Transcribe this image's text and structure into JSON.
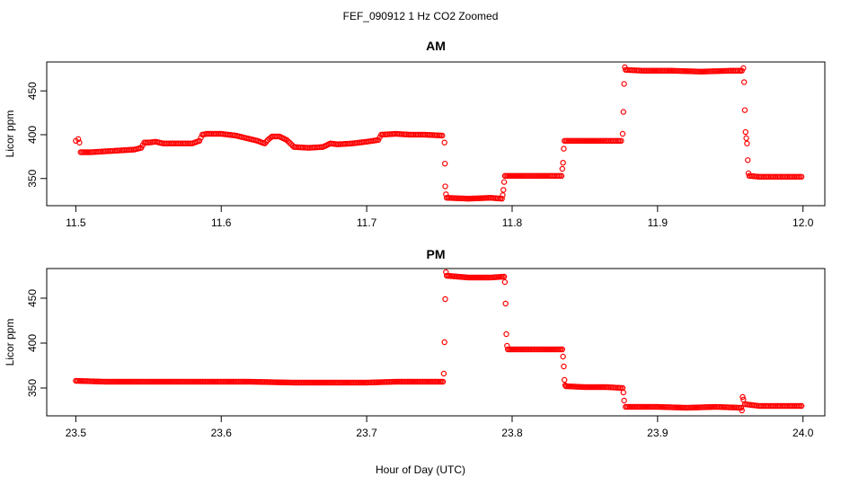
{
  "suptitle": "FEF_090912  1 Hz CO2 Zoomed",
  "xlabel": "Hour of Day (UTC)",
  "marker_color": "#ff0000",
  "chart_data": [
    {
      "type": "scatter",
      "title": "AM",
      "ylabel": "Licor ppm",
      "xlim": [
        11.48,
        12.015
      ],
      "ylim": [
        319,
        483
      ],
      "x_ticks": [
        "11.5",
        "11.6",
        "11.7",
        "11.8",
        "11.9",
        "12.0"
      ],
      "y_ticks": [
        "350",
        "400",
        "450"
      ],
      "series": [
        {
          "marker": "open-circle",
          "points": [
            [
              11.5,
              393
            ],
            [
              11.5017,
              395
            ],
            [
              11.5025,
              391
            ],
            [
              11.5033,
              380
            ],
            [
              11.51,
              380
            ],
            [
              11.52,
              381
            ],
            [
              11.53,
              382
            ],
            [
              11.54,
              383
            ],
            [
              11.545,
              385
            ],
            [
              11.547,
              391
            ],
            [
              11.55,
              391
            ],
            [
              11.555,
              392
            ],
            [
              11.56,
              390
            ],
            [
              11.57,
              390
            ],
            [
              11.58,
              390
            ],
            [
              11.585,
              393
            ],
            [
              11.587,
              400
            ],
            [
              11.59,
              401
            ],
            [
              11.6,
              401
            ],
            [
              11.61,
              399
            ],
            [
              11.62,
              395
            ],
            [
              11.625,
              393
            ],
            [
              11.628,
              391
            ],
            [
              11.63,
              390
            ],
            [
              11.632,
              394
            ],
            [
              11.635,
              398
            ],
            [
              11.64,
              398
            ],
            [
              11.645,
              394
            ],
            [
              11.65,
              386
            ],
            [
              11.66,
              385
            ],
            [
              11.67,
              386
            ],
            [
              11.675,
              390
            ],
            [
              11.68,
              389
            ],
            [
              11.69,
              390
            ],
            [
              11.7,
              392
            ],
            [
              11.708,
              394
            ],
            [
              11.71,
              400
            ],
            [
              11.72,
              401
            ],
            [
              11.73,
              400
            ],
            [
              11.74,
              400
            ],
            [
              11.752,
              399
            ],
            [
              11.7535,
              391
            ],
            [
              11.7538,
              367
            ],
            [
              11.754,
              341
            ],
            [
              11.7545,
              332
            ],
            [
              11.755,
              328
            ],
            [
              11.77,
              327
            ],
            [
              11.785,
              328
            ],
            [
              11.793,
              327
            ],
            [
              11.7935,
              331
            ],
            [
              11.794,
              337
            ],
            [
              11.7945,
              346
            ],
            [
              11.795,
              353
            ],
            [
              11.81,
              353
            ],
            [
              11.825,
              353
            ],
            [
              11.834,
              353
            ],
            [
              11.8345,
              361
            ],
            [
              11.835,
              368
            ],
            [
              11.8355,
              384
            ],
            [
              11.836,
              393
            ],
            [
              11.85,
              393
            ],
            [
              11.865,
              393
            ],
            [
              11.875,
              393
            ],
            [
              11.876,
              401
            ],
            [
              11.8765,
              426
            ],
            [
              11.877,
              458
            ],
            [
              11.8775,
              477
            ],
            [
              11.878,
              474
            ],
            [
              11.89,
              473
            ],
            [
              11.91,
              473
            ],
            [
              11.93,
              472
            ],
            [
              11.95,
              473
            ],
            [
              11.958,
              473
            ],
            [
              11.959,
              476
            ],
            [
              11.9595,
              460
            ],
            [
              11.96,
              428
            ],
            [
              11.9605,
              403
            ],
            [
              11.961,
              396
            ],
            [
              11.9615,
              390
            ],
            [
              11.962,
              371
            ],
            [
              11.9625,
              356
            ],
            [
              11.963,
              353
            ],
            [
              11.97,
              352
            ],
            [
              11.98,
              352
            ],
            [
              11.99,
              352
            ],
            [
              11.999,
              352
            ]
          ]
        }
      ]
    },
    {
      "type": "scatter",
      "title": "PM",
      "ylabel": "Licor ppm",
      "xlim": [
        23.48,
        24.015
      ],
      "ylim": [
        319,
        483
      ],
      "x_ticks": [
        "23.5",
        "23.6",
        "23.7",
        "23.8",
        "23.9",
        "24.0"
      ],
      "y_ticks": [
        "350",
        "400",
        "450"
      ],
      "series": [
        {
          "marker": "open-circle",
          "points": [
            [
              23.5,
              358
            ],
            [
              23.52,
              357
            ],
            [
              23.55,
              357
            ],
            [
              23.58,
              357
            ],
            [
              23.6,
              357
            ],
            [
              23.62,
              357
            ],
            [
              23.65,
              356
            ],
            [
              23.68,
              356
            ],
            [
              23.7,
              356
            ],
            [
              23.72,
              357
            ],
            [
              23.74,
              357
            ],
            [
              23.7525,
              357
            ],
            [
              23.753,
              366
            ],
            [
              23.7535,
              401
            ],
            [
              23.754,
              449
            ],
            [
              23.7545,
              479
            ],
            [
              23.755,
              475
            ],
            [
              23.77,
              473
            ],
            [
              23.785,
              473
            ],
            [
              23.7945,
              474
            ],
            [
              23.795,
              468
            ],
            [
              23.7955,
              444
            ],
            [
              23.796,
              410
            ],
            [
              23.7965,
              397
            ],
            [
              23.797,
              393
            ],
            [
              23.81,
              393
            ],
            [
              23.825,
              393
            ],
            [
              23.8345,
              393
            ],
            [
              23.835,
              385
            ],
            [
              23.8355,
              374
            ],
            [
              23.836,
              359
            ],
            [
              23.8365,
              353
            ],
            [
              23.837,
              352
            ],
            [
              23.85,
              351
            ],
            [
              23.865,
              351
            ],
            [
              23.876,
              350
            ],
            [
              23.8765,
              345
            ],
            [
              23.877,
              336
            ],
            [
              23.878,
              329
            ],
            [
              23.88,
              329
            ],
            [
              23.9,
              329
            ],
            [
              23.92,
              328
            ],
            [
              23.94,
              329
            ],
            [
              23.9575,
              328
            ],
            [
              23.958,
              325
            ],
            [
              23.9585,
              340
            ],
            [
              23.959,
              337
            ],
            [
              23.96,
              332
            ],
            [
              23.97,
              330
            ],
            [
              23.98,
              330
            ],
            [
              23.99,
              330
            ],
            [
              23.999,
              330
            ]
          ]
        }
      ]
    }
  ]
}
